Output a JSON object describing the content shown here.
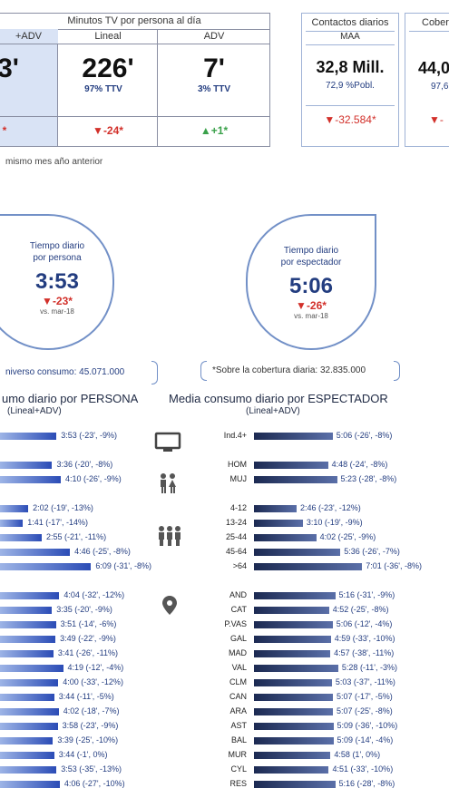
{
  "tv_table": {
    "header": "Minutos TV por persona al día",
    "columns": [
      {
        "label": "+ADV",
        "value": "3'",
        "sub": "3",
        "delta": "*"
      },
      {
        "label": "Lineal",
        "value": "226'",
        "sub": "97% TTV",
        "delta": "-24*"
      },
      {
        "label": "ADV",
        "value": "7'",
        "sub": "3% TTV",
        "delta": "+1*"
      }
    ],
    "footnote": "mismo mes año anterior"
  },
  "contactos": {
    "title": "Contactos diarios",
    "subtitle": "MAA",
    "value": "32,8 Mill.",
    "sub": "72,9 %Pobl.",
    "delta": "-32.584*"
  },
  "cobertura": {
    "title": "Cober",
    "value": "44,0",
    "sub": "97,6",
    "delta": "-"
  },
  "bubble_persona": {
    "title1": "Tiempo diario",
    "title2": "por persona",
    "value": "3:53",
    "delta": "-23*",
    "vs": "vs. mar-18"
  },
  "bubble_espectador": {
    "title1": "Tiempo diario",
    "title2": "por espectador",
    "value": "5:06",
    "delta": "-26*",
    "vs": "vs. mar-18"
  },
  "universo_note": "niverso consumo: 45.071.000",
  "cobertura_note": "*Sobre la cobertura diaria: 32.835.000",
  "left_title": "umo diario por PERSONA",
  "left_sub": "(Lineal+ADV)",
  "right_title": "Media consumo diario por ESPECTADOR",
  "right_sub": "(Lineal+ADV)",
  "icons": [
    "tv-icon",
    "couple-icon",
    "family-icon",
    "location-pin-icon"
  ],
  "chart_data": {
    "type": "bar",
    "title": "Media consumo diario por ESPECTADOR",
    "categories": [
      "Ind.4+",
      "HOM",
      "MUJ",
      "4-12",
      "13-24",
      "25-44",
      "45-64",
      ">64",
      "AND",
      "CAT",
      "P.VAS",
      "GAL",
      "MAD",
      "VAL",
      "CLM",
      "CAN",
      "ARA",
      "AST",
      "BAL",
      "MUR",
      "CYL",
      "RES"
    ],
    "series": [
      {
        "name": "PERSONA",
        "values": [
          "3:53",
          "3:36",
          "4:10",
          "2:02",
          "1:41",
          "2:55",
          "4:46",
          "6:09",
          "4:04",
          "3:35",
          "3:51",
          "3:49",
          "3:41",
          "4:19",
          "4:00",
          "3:44",
          "4:02",
          "3:58",
          "3:39",
          "3:44",
          "3:53",
          "4:06"
        ],
        "labels": [
          "3:53 (-23', -9%)",
          "3:36 (-20', -8%)",
          "4:10 (-26', -9%)",
          "2:02 (-19', -13%)",
          "1:41 (-17', -14%)",
          "2:55 (-21', -11%)",
          "4:46 (-25', -8%)",
          "6:09 (-31', -8%)",
          "4:04 (-32', -12%)",
          "3:35 (-20', -9%)",
          "3:51 (-14', -6%)",
          "3:49 (-22', -9%)",
          "3:41 (-26', -11%)",
          "4:19 (-12', -4%)",
          "4:00 (-33', -12%)",
          "3:44 (-11', -5%)",
          "4:02 (-18', -7%)",
          "3:58 (-23', -9%)",
          "3:39 (-25', -10%)",
          "3:44 (-1', 0%)",
          "3:53 (-35', -13%)",
          "4:06 (-27', -10%)"
        ]
      },
      {
        "name": "ESPECTADOR",
        "values": [
          "5:06",
          "4:48",
          "5:23",
          "2:46",
          "3:10",
          "4:02",
          "5:36",
          "7:01",
          "5:16",
          "4:52",
          "5:06",
          "4:59",
          "4:57",
          "5:28",
          "5:03",
          "5:07",
          "5:07",
          "5:09",
          "5:09",
          "4:58",
          "4:51",
          "5:16"
        ],
        "labels": [
          "5:06 (-26', -8%)",
          "4:48 (-24', -8%)",
          "5:23 (-28', -8%)",
          "2:46 (-23', -12%)",
          "3:10 (-19', -9%)",
          "4:02 (-25', -9%)",
          "5:36 (-26', -7%)",
          "7:01 (-36', -8%)",
          "5:16 (-31', -9%)",
          "4:52 (-25', -8%)",
          "5:06 (-12', -4%)",
          "4:59 (-33', -10%)",
          "4:57 (-38', -11%)",
          "5:28 (-11', -3%)",
          "5:03 (-37', -11%)",
          "5:07 (-17', -5%)",
          "5:07 (-25', -8%)",
          "5:09 (-36', -10%)",
          "5:09 (-14', -4%)",
          "4:58 (1', 0%)",
          "4:51 (-33', -10%)",
          "5:16 (-28', -8%)"
        ]
      }
    ]
  }
}
